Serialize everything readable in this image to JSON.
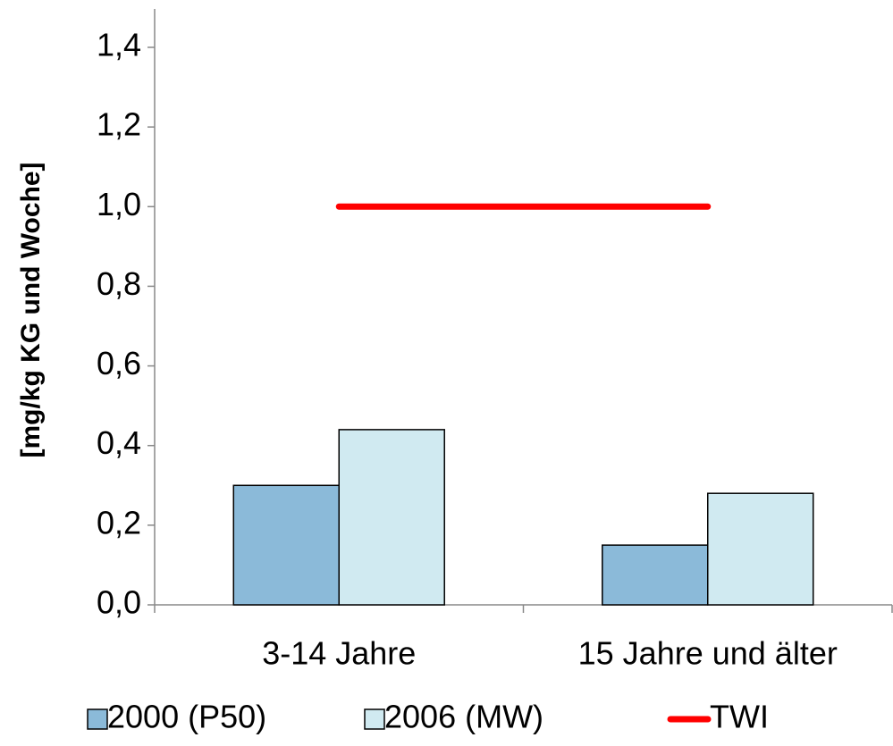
{
  "chart_data": {
    "type": "bar",
    "y_label": "[mg/kg KG und Woche]",
    "categories": [
      "3-14 Jahre",
      "15 Jahre und älter"
    ],
    "series": [
      {
        "name": "2000 (P50)",
        "color": "#8bbad9",
        "values": [
          0.3,
          0.15
        ]
      },
      {
        "name": "2006 (MW)",
        "color": "#d0eaf1",
        "values": [
          0.44,
          0.28
        ]
      },
      {
        "name": "TWI",
        "color": "#ff0000",
        "type": "line",
        "values": [
          1.0,
          1.0
        ]
      }
    ],
    "ylim": [
      0,
      1.4
    ],
    "yticks": [
      {
        "value": 0,
        "label": "0,0"
      },
      {
        "value": 0.2,
        "label": "0,2"
      },
      {
        "value": 0.4,
        "label": "0,4"
      },
      {
        "value": 0.6,
        "label": "0,6"
      },
      {
        "value": 0.8,
        "label": "0,8"
      },
      {
        "value": 1.0,
        "label": "1,0"
      },
      {
        "value": 1.2,
        "label": "1,2"
      },
      {
        "value": 1.4,
        "label": "1,4"
      }
    ],
    "legend": "bottom"
  }
}
